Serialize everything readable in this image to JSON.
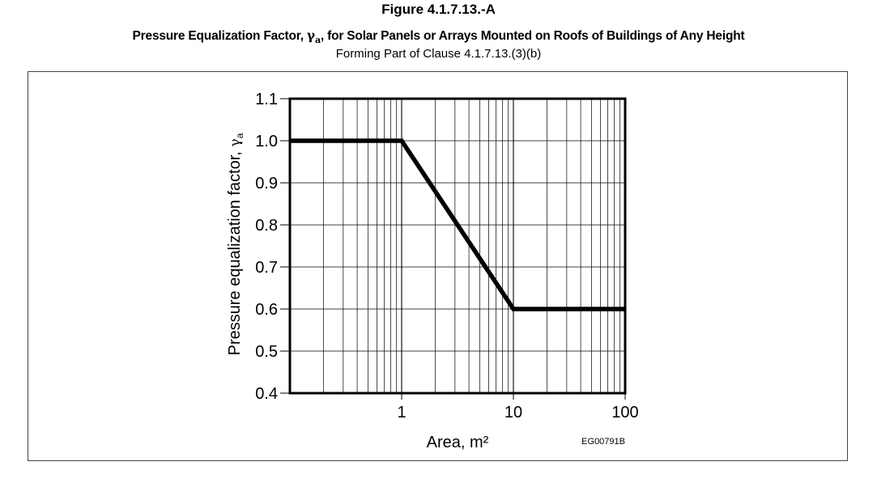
{
  "figure": {
    "title": "Figure 4.1.7.13.-A",
    "subtitle_pre": "Pressure Equalization Factor, ",
    "subtitle_symbol": "γ",
    "subtitle_sub": "a",
    "subtitle_post": ", for Solar Panels or Arrays Mounted on Roofs of Buildings of Any Height",
    "reference": "Forming Part of  Clause  4.1.7.13.(3)(b)",
    "code": "EG00791B"
  },
  "chart_data": {
    "type": "line",
    "xscale": "log",
    "xlim": [
      0.1,
      100
    ],
    "ylim": [
      0.4,
      1.1
    ],
    "xlabel": "Area, m²",
    "ylabel_text": "Pressure equalization factor, ",
    "ylabel_symbol": "γ",
    "ylabel_sub": "a",
    "xticks": [
      {
        "value": 1,
        "label": "1"
      },
      {
        "value": 10,
        "label": "10"
      },
      {
        "value": 100,
        "label": "100"
      }
    ],
    "yticks": [
      {
        "value": 0.4,
        "label": "0.4"
      },
      {
        "value": 0.5,
        "label": "0.5"
      },
      {
        "value": 0.6,
        "label": "0.6"
      },
      {
        "value": 0.7,
        "label": "0.7"
      },
      {
        "value": 0.8,
        "label": "0.8"
      },
      {
        "value": 0.9,
        "label": "0.9"
      },
      {
        "value": 1.0,
        "label": "1.0"
      },
      {
        "value": 1.1,
        "label": "1.1"
      }
    ],
    "grid": true,
    "series": [
      {
        "x": [
          0.1,
          1,
          10,
          100
        ],
        "y": [
          1.0,
          1.0,
          0.6,
          0.6
        ]
      }
    ],
    "colors": {
      "line": "#000000",
      "grid": "#000000"
    }
  }
}
